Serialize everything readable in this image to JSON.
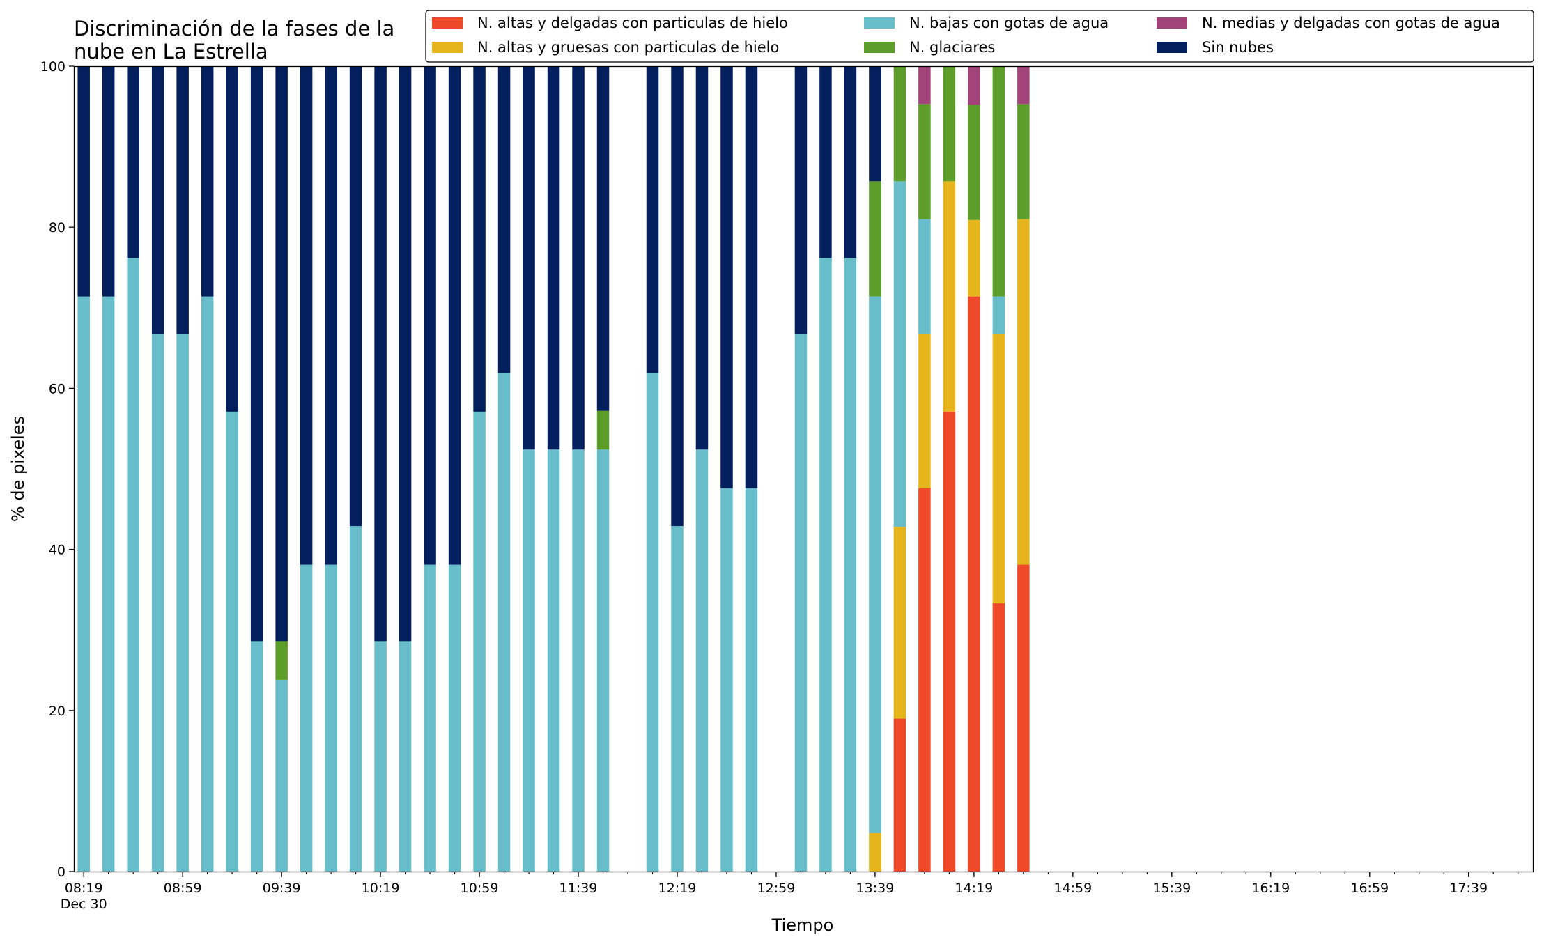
{
  "chart_data": {
    "type": "bar",
    "stacked": true,
    "title_lines": [
      "Discriminación de la fases de la",
      "nube en La Estrella"
    ],
    "xlabel": "Tiempo",
    "ylabel": "% de pixeles",
    "ylim": [
      0,
      100
    ],
    "yticks": [
      "0",
      "20",
      "40",
      "60",
      "80",
      "100"
    ],
    "x_range_minutes": [
      "08:15",
      "18:05"
    ],
    "xtick_labels": [
      "08:19",
      "08:59",
      "09:39",
      "10:19",
      "10:59",
      "11:39",
      "12:19",
      "12:59",
      "13:39",
      "14:19",
      "14:59",
      "15:39",
      "16:19",
      "16:59",
      "17:39"
    ],
    "xtick_sublabel": "Dec 30",
    "minor_tick_interval_min": 10,
    "legend_position": "top-right",
    "grid": false,
    "series": [
      {
        "name": "N. altas y delgadas con particulas de hielo",
        "color": "#ee4a2a"
      },
      {
        "name": "N. altas y gruesas con particulas de hielo",
        "color": "#e6b51c"
      },
      {
        "name": "N. bajas con gotas de agua",
        "color": "#67bdc9"
      },
      {
        "name": "N. glaciares",
        "color": "#5d9e2b"
      },
      {
        "name": "N. medias y delgadas con gotas de agua",
        "color": "#a24479"
      },
      {
        "name": "Sin nubes",
        "color": "#031f5d"
      }
    ],
    "bars": [
      {
        "time": "08:19",
        "values": [
          0,
          0,
          71.4,
          0,
          0,
          28.6
        ]
      },
      {
        "time": "08:29",
        "values": [
          0,
          0,
          71.4,
          0,
          0,
          28.6
        ]
      },
      {
        "time": "08:39",
        "values": [
          0,
          0,
          76.2,
          0,
          0,
          23.8
        ]
      },
      {
        "time": "08:49",
        "values": [
          0,
          0,
          66.7,
          0,
          0,
          33.3
        ]
      },
      {
        "time": "08:59",
        "values": [
          0,
          0,
          66.7,
          0,
          0,
          33.3
        ]
      },
      {
        "time": "09:09",
        "values": [
          0,
          0,
          71.4,
          0,
          0,
          28.6
        ]
      },
      {
        "time": "09:19",
        "values": [
          0,
          0,
          57.1,
          0,
          0,
          42.9
        ]
      },
      {
        "time": "09:29",
        "values": [
          0,
          0,
          28.6,
          0,
          0,
          71.4
        ]
      },
      {
        "time": "09:39",
        "values": [
          0,
          0,
          23.8,
          4.8,
          0,
          71.4
        ]
      },
      {
        "time": "09:49",
        "values": [
          0,
          0,
          38.1,
          0,
          0,
          61.9
        ]
      },
      {
        "time": "09:59",
        "values": [
          0,
          0,
          38.1,
          0,
          0,
          61.9
        ]
      },
      {
        "time": "10:09",
        "values": [
          0,
          0,
          42.9,
          0,
          0,
          57.1
        ]
      },
      {
        "time": "10:19",
        "values": [
          0,
          0,
          28.6,
          0,
          0,
          71.4
        ]
      },
      {
        "time": "10:29",
        "values": [
          0,
          0,
          28.6,
          0,
          0,
          71.4
        ]
      },
      {
        "time": "10:39",
        "values": [
          0,
          0,
          38.1,
          0,
          0,
          61.9
        ]
      },
      {
        "time": "10:49",
        "values": [
          0,
          0,
          38.1,
          0,
          0,
          61.9
        ]
      },
      {
        "time": "10:59",
        "values": [
          0,
          0,
          57.1,
          0,
          0,
          42.9
        ]
      },
      {
        "time": "11:09",
        "values": [
          0,
          0,
          61.9,
          0,
          0,
          38.1
        ]
      },
      {
        "time": "11:19",
        "values": [
          0,
          0,
          52.4,
          0,
          0,
          47.6
        ]
      },
      {
        "time": "11:29",
        "values": [
          0,
          0,
          52.4,
          0,
          0,
          47.6
        ]
      },
      {
        "time": "11:39",
        "values": [
          0,
          0,
          52.4,
          0,
          0,
          47.6
        ]
      },
      {
        "time": "11:49",
        "values": [
          0,
          0,
          52.4,
          4.8,
          0,
          42.8
        ]
      },
      {
        "time": "12:09",
        "values": [
          0,
          0,
          61.9,
          0,
          0,
          38.1
        ]
      },
      {
        "time": "12:19",
        "values": [
          0,
          0,
          42.9,
          0,
          0,
          57.1
        ]
      },
      {
        "time": "12:29",
        "values": [
          0,
          0,
          52.4,
          0,
          0,
          47.6
        ]
      },
      {
        "time": "12:39",
        "values": [
          0,
          0,
          47.6,
          0,
          0,
          52.4
        ]
      },
      {
        "time": "12:49",
        "values": [
          0,
          0,
          47.6,
          0,
          0,
          52.4
        ]
      },
      {
        "time": "13:09",
        "values": [
          0,
          0,
          66.7,
          0,
          0,
          33.3
        ]
      },
      {
        "time": "13:19",
        "values": [
          0,
          0,
          76.2,
          0,
          0,
          23.8
        ]
      },
      {
        "time": "13:29",
        "values": [
          0,
          0,
          76.2,
          0,
          0,
          23.8
        ]
      },
      {
        "time": "13:39",
        "values": [
          0,
          4.8,
          66.6,
          14.3,
          0,
          14.3
        ]
      },
      {
        "time": "13:49",
        "values": [
          19.0,
          23.8,
          42.9,
          14.3,
          0,
          0
        ]
      },
      {
        "time": "13:59",
        "values": [
          47.6,
          19.1,
          14.3,
          14.3,
          4.7,
          0
        ]
      },
      {
        "time": "14:09",
        "values": [
          57.1,
          28.6,
          0,
          14.3,
          0,
          0
        ]
      },
      {
        "time": "14:19",
        "values": [
          71.4,
          9.5,
          0,
          14.3,
          4.8,
          0
        ]
      },
      {
        "time": "14:29",
        "values": [
          33.3,
          33.4,
          4.7,
          28.6,
          0,
          0
        ]
      },
      {
        "time": "14:39",
        "values": [
          38.1,
          42.9,
          0,
          14.3,
          4.7,
          0
        ]
      }
    ]
  }
}
